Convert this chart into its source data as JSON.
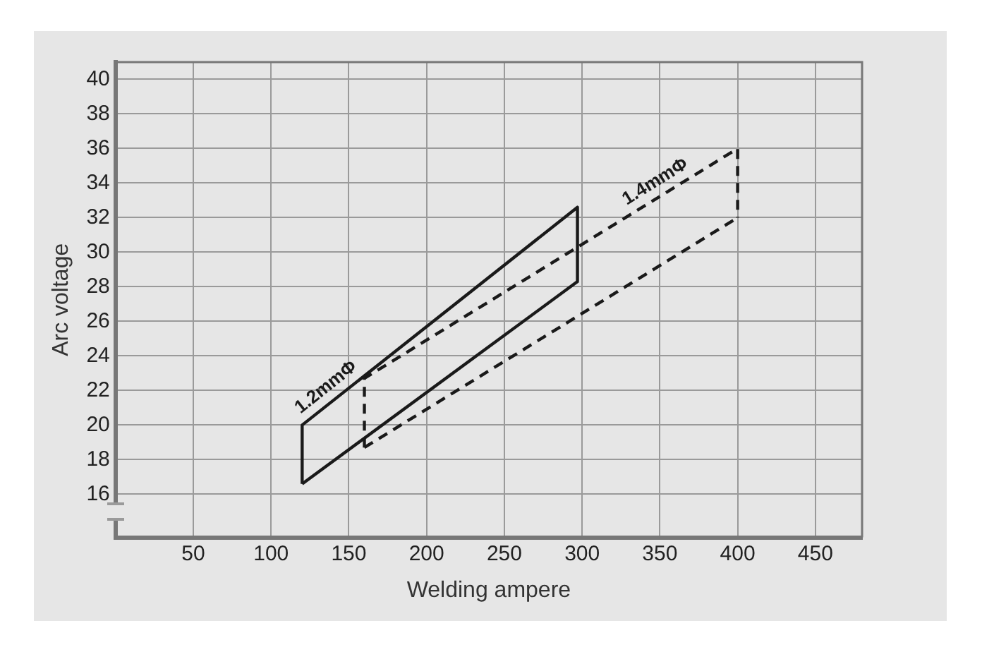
{
  "chart_data": {
    "type": "line",
    "xlabel": "Welding ampere",
    "ylabel": "Arc voltage",
    "xlim": [
      0,
      480
    ],
    "xticks": [
      50,
      100,
      150,
      200,
      250,
      300,
      350,
      400,
      450
    ],
    "ylim": [
      13.5,
      41
    ],
    "yticks": [
      16,
      18,
      20,
      22,
      24,
      26,
      28,
      30,
      32,
      34,
      36,
      38,
      40
    ],
    "grid": true,
    "legend": false,
    "marker": "none",
    "series": [
      {
        "name": "1.2mmΦ",
        "color": "#1a1a1a",
        "line_style": "solid",
        "x": [
          120,
          120,
          297,
          297
        ],
        "values": [
          16.6,
          20,
          32.6,
          28.3
        ]
      },
      {
        "color": "#1a1a1a",
        "line_style": "solid",
        "x": [
          120,
          297
        ],
        "values": [
          16.6,
          28.3
        ]
      },
      {
        "name": "1.4mmΦ",
        "color": "#1a1a1a",
        "line_style": "dashed",
        "x": [
          160,
          160,
          400,
          400
        ],
        "values": [
          18.7,
          22.7,
          36,
          32
        ]
      },
      {
        "color": "#1a1a1a",
        "line_style": "dashed",
        "x": [
          160,
          400
        ],
        "values": [
          18.7,
          32
        ]
      }
    ]
  }
}
